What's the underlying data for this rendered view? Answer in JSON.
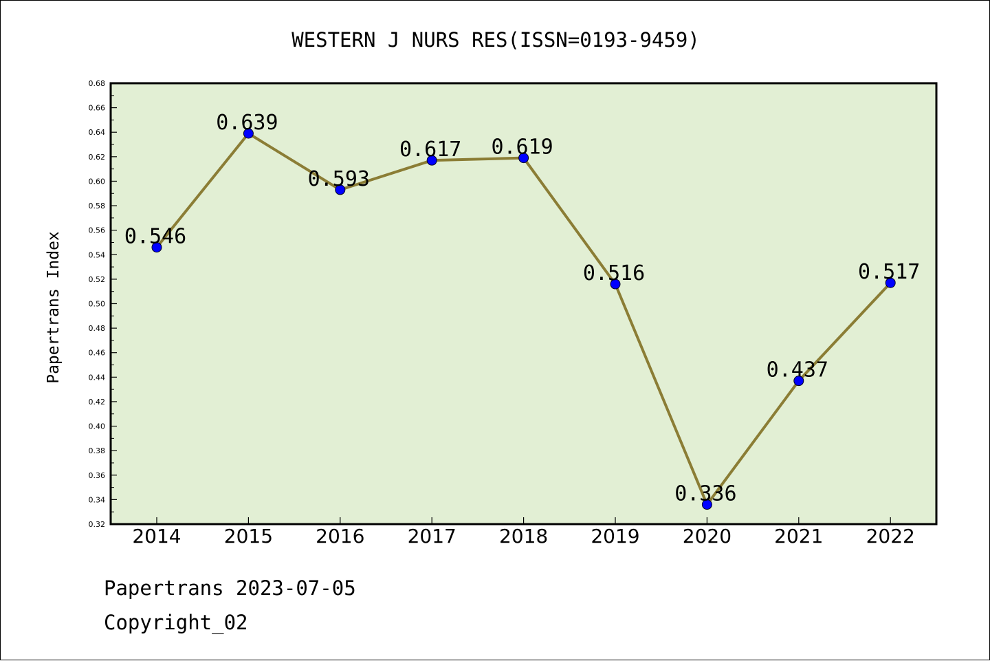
{
  "chart_data": {
    "type": "line",
    "title": "WESTERN J NURS RES(ISSN=0193-9459)",
    "ylabel": "Papertrans Index",
    "xlabel": "",
    "categories": [
      "2014",
      "2015",
      "2016",
      "2017",
      "2018",
      "2019",
      "2020",
      "2021",
      "2022"
    ],
    "series": [
      {
        "values": [
          0.546,
          0.639,
          0.593,
          0.617,
          0.619,
          0.516,
          0.336,
          0.437,
          0.517
        ]
      }
    ],
    "data_labels": [
      "0.546",
      "0.639",
      "0.593",
      "0.617",
      "0.619",
      "0.516",
      "0.336",
      "0.437",
      "0.517"
    ],
    "ylim": [
      0.32,
      0.68
    ],
    "yticks": [
      "0.32",
      "0.34",
      "0.36",
      "0.38",
      "0.40",
      "0.42",
      "0.44",
      "0.46",
      "0.48",
      "0.50",
      "0.52",
      "0.54",
      "0.56",
      "0.58",
      "0.60",
      "0.62",
      "0.64",
      "0.66",
      "0.68"
    ],
    "grid": false,
    "colors": {
      "line": "#8b7d35",
      "marker": "#0000ff",
      "plot_background": "#e2efd4"
    }
  },
  "footer": {
    "line1": "Papertrans 2023-07-05",
    "line2": "Copyright_02"
  }
}
